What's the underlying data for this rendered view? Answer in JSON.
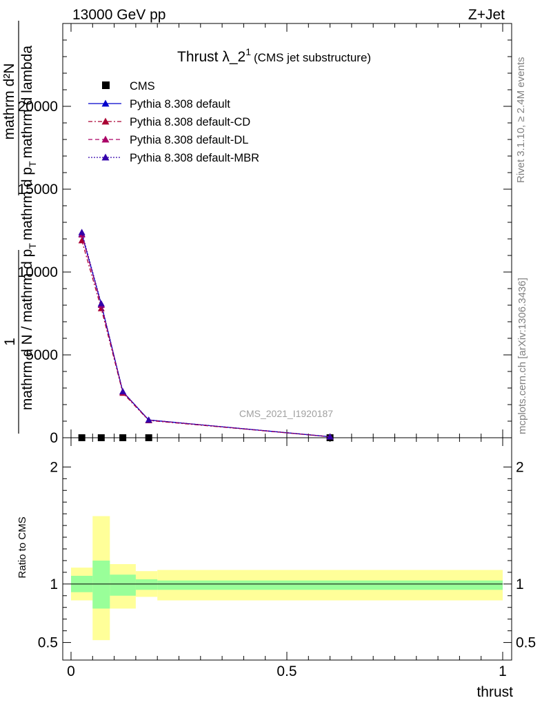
{
  "header": {
    "left": "13000 GeV pp",
    "right": "Z+Jet"
  },
  "plot_title": {
    "main": "Thrust λ_2",
    "sup": "1",
    "sub": "(CMS jet substructure)"
  },
  "side_text": {
    "rivet": "Rivet 3.1.10, ≥ 2.4M events",
    "mcplots": "mcplots.cern.ch [arXiv:1306.3436]"
  },
  "watermark": "CMS_2021_I1920187",
  "y_axis_label": {
    "numerator": "1",
    "frac1_top": "mathrm d²N",
    "frac1_bottom": "mathrm d N / mathrm d p_T mathrm d p_T mathrm d lambda",
    "line1": "mathrm d N / mathrm d p",
    "line2": "T",
    "line3": "mathrm d p",
    "line4": "T",
    "line5": "mathrm d lambda"
  },
  "ratio_label": "Ratio to CMS",
  "x_axis_label": "thrust",
  "colors": {
    "pythia_default": "#0000cc",
    "pythia_cd": "#aa0033",
    "pythia_dl": "#aa0066",
    "pythia_mbr": "#3300aa",
    "band_inner": "#99ff99",
    "band_outer": "#ffff99",
    "cms": "#000000"
  },
  "chart_data": {
    "type": "line",
    "title": "Thrust λ_2^1 (CMS jet substructure)",
    "xlabel": "thrust",
    "ylabel": "1 / mathrm dN / mathrm d p_T mathrm d p_T mathrm d lambda · mathrm d²N",
    "xlim": [
      0,
      1
    ],
    "ylim": [
      0,
      25000
    ],
    "y_ticks": [
      0,
      5000,
      10000,
      15000,
      20000
    ],
    "y_tick_labels": [
      "0",
      "5000",
      "10000",
      "15000",
      "20000"
    ],
    "x_ticks": [
      0,
      0.5,
      1
    ],
    "x_tick_labels": [
      "0",
      "0.5",
      "1"
    ],
    "legend_position": "top-left",
    "bin_edges": [
      0,
      0.05,
      0.09,
      0.15,
      0.2,
      1.0
    ],
    "x": [
      0.025,
      0.07,
      0.12,
      0.18,
      0.6
    ],
    "series": [
      {
        "name": "CMS",
        "marker": "square",
        "values": [
          0,
          0,
          0,
          0,
          0
        ]
      },
      {
        "name": "Pythia 8.308 default",
        "marker": "triangle",
        "style": "solid",
        "values": [
          12300,
          8050,
          2780,
          1070,
          60
        ]
      },
      {
        "name": "Pythia 8.308 default-CD",
        "marker": "triangle",
        "style": "dashdot",
        "values": [
          11900,
          7800,
          2700,
          1040,
          58
        ]
      },
      {
        "name": "Pythia 8.308 default-DL",
        "marker": "triangle",
        "style": "dashed",
        "values": [
          12250,
          8000,
          2760,
          1065,
          60
        ]
      },
      {
        "name": "Pythia 8.308 default-MBR",
        "marker": "triangle",
        "style": "dotted",
        "values": [
          12400,
          8100,
          2790,
          1075,
          60
        ]
      }
    ],
    "ratio_panel": {
      "ylabel": "Ratio to CMS",
      "ylim": [
        0.35,
        2.25
      ],
      "y_ticks": [
        0.5,
        1,
        2
      ],
      "y_tick_labels": [
        "0.5",
        "1",
        "2"
      ],
      "reference": 1,
      "bands": [
        {
          "x0": 0.0,
          "x1": 0.05,
          "inner": [
            0.93,
            1.07
          ],
          "outer": [
            0.86,
            1.14
          ]
        },
        {
          "x0": 0.05,
          "x1": 0.09,
          "inner": [
            0.79,
            1.2
          ],
          "outer": [
            0.52,
            1.58
          ]
        },
        {
          "x0": 0.09,
          "x1": 0.15,
          "inner": [
            0.9,
            1.08
          ],
          "outer": [
            0.79,
            1.17
          ]
        },
        {
          "x0": 0.15,
          "x1": 0.2,
          "inner": [
            0.95,
            1.04
          ],
          "outer": [
            0.89,
            1.11
          ]
        },
        {
          "x0": 0.2,
          "x1": 1.0,
          "inner": [
            0.95,
            1.03
          ],
          "outer": [
            0.86,
            1.12
          ]
        }
      ]
    }
  }
}
